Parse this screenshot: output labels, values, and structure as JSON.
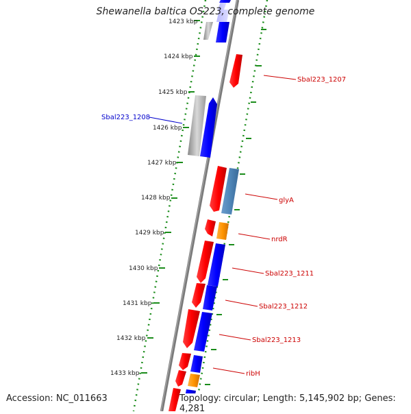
{
  "title": "Shewanella baltica OS223, complete genome",
  "accession": "Accession: NC_011663",
  "topology": "Topology: circular; Length: 5,145,902 bp; Genes: 4,281",
  "colors": {
    "cds_forward": "#0000ff",
    "cds_reverse": "#ff0000",
    "gene_gray": "#a8a8a8",
    "trna_blue": "#4f86b8",
    "orange": "#ff9500",
    "backbone": "#808080",
    "gc_ticks": "#1a8c1a",
    "label_red": "#cc0000",
    "label_blue": "#0000cc"
  },
  "ticks": [
    "1423 kbp",
    "1424 kbp",
    "1425 kbp",
    "1426 kbp",
    "1427 kbp",
    "1428 kbp",
    "1429 kbp",
    "1430 kbp",
    "1431 kbp",
    "1432 kbp",
    "1433 kbp"
  ],
  "gene_labels": [
    {
      "text": "Sbal223_1207",
      "color": "red"
    },
    {
      "text": "Sbal223_1208",
      "color": "blue"
    },
    {
      "text": "glyA",
      "color": "red"
    },
    {
      "text": "nrdR",
      "color": "red"
    },
    {
      "text": "Sbal223_1211",
      "color": "red"
    },
    {
      "text": "Sbal223_1212",
      "color": "red"
    },
    {
      "text": "Sbal223_1213",
      "color": "red"
    },
    {
      "text": "ribH",
      "color": "red"
    }
  ]
}
